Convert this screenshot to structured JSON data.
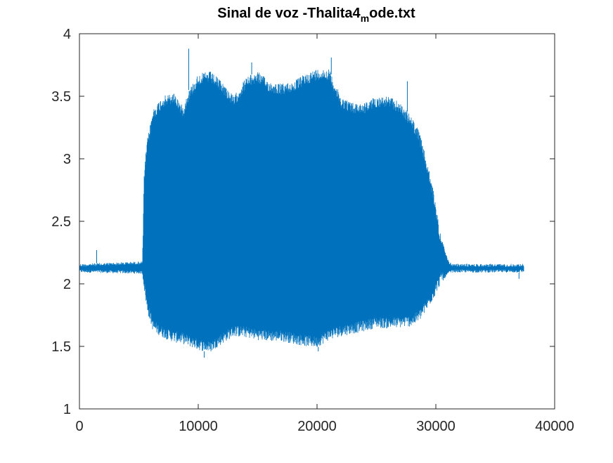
{
  "chart_data": {
    "type": "line",
    "title": {
      "prefix": "Sinal de voz -Thalita4",
      "subscript": "m",
      "suffix": "ode.txt"
    },
    "xlabel": "",
    "ylabel": "",
    "xlim": [
      0,
      40000
    ],
    "ylim": [
      1,
      4
    ],
    "x_ticks": [
      0,
      10000,
      20000,
      30000,
      40000
    ],
    "x_tick_labels": [
      "0",
      "10000",
      "20000",
      "30000",
      "40000"
    ],
    "y_ticks": [
      1,
      1.5,
      2,
      2.5,
      3,
      3.5,
      4
    ],
    "y_tick_labels": [
      "1",
      "1.5",
      "2",
      "2.5",
      "3",
      "3.5",
      "4"
    ],
    "grid": false,
    "series_color": "#0072bd",
    "signal": {
      "x_end": 37400,
      "baseline": 2.12,
      "envelope": {
        "x": [
          0,
          5300,
          5450,
          5700,
          6200,
          7000,
          8000,
          8700,
          9200,
          10000,
          11000,
          12000,
          13000,
          14000,
          15000,
          16000,
          17000,
          18000,
          19000,
          20000,
          21000,
          22000,
          23000,
          24000,
          25000,
          26000,
          27000,
          28000,
          28600,
          29200,
          29800,
          30300,
          30800,
          31100,
          31400,
          37400
        ],
        "upper": [
          2.16,
          2.18,
          2.9,
          3.15,
          3.4,
          3.5,
          3.53,
          3.42,
          3.55,
          3.68,
          3.7,
          3.62,
          3.5,
          3.65,
          3.7,
          3.62,
          3.6,
          3.62,
          3.68,
          3.72,
          3.72,
          3.5,
          3.45,
          3.45,
          3.5,
          3.5,
          3.45,
          3.33,
          3.22,
          3.0,
          2.75,
          2.45,
          2.25,
          2.18,
          2.16,
          2.16
        ],
        "lower": [
          2.09,
          2.08,
          1.95,
          1.78,
          1.62,
          1.57,
          1.53,
          1.52,
          1.5,
          1.47,
          1.45,
          1.52,
          1.58,
          1.57,
          1.55,
          1.54,
          1.54,
          1.52,
          1.5,
          1.49,
          1.55,
          1.58,
          1.6,
          1.62,
          1.65,
          1.64,
          1.65,
          1.66,
          1.7,
          1.78,
          1.88,
          1.98,
          2.05,
          2.08,
          2.09,
          2.09
        ]
      },
      "peaks": [
        {
          "x": 1450,
          "y": 2.27
        },
        {
          "x": 9200,
          "y": 3.88
        },
        {
          "x": 14500,
          "y": 3.77
        },
        {
          "x": 21200,
          "y": 3.81
        },
        {
          "x": 27600,
          "y": 3.62
        },
        {
          "x": 10500,
          "y": 1.41
        },
        {
          "x": 20100,
          "y": 1.46
        },
        {
          "x": 37000,
          "y": 2.04
        }
      ]
    }
  }
}
